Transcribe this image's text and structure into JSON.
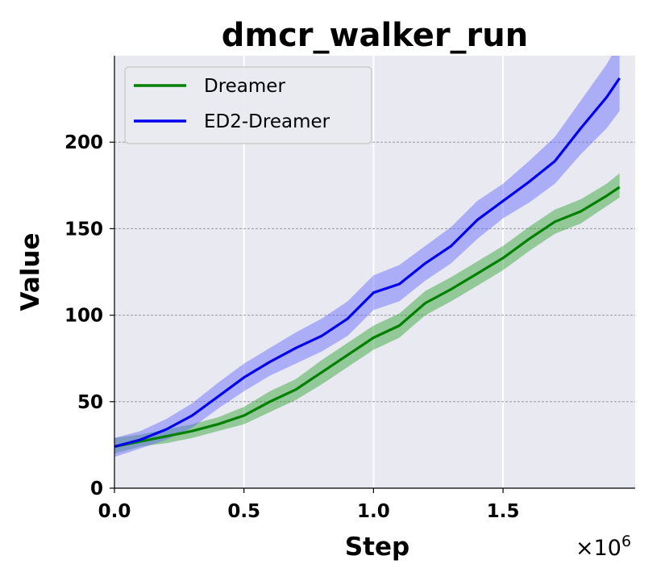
{
  "chart_data": {
    "type": "line",
    "title": "dmcr_walker_run",
    "xlabel": "Step",
    "ylabel": "Value",
    "x_multiplier_base": "×10",
    "x_multiplier_exp": "6",
    "xlim": [
      0,
      2010000
    ],
    "ylim": [
      0,
      250
    ],
    "x_ticks": [
      0,
      500000,
      1000000,
      1500000
    ],
    "x_tick_labels": [
      "0.0",
      "0.5",
      "1.0",
      "1.5"
    ],
    "y_ticks": [
      0,
      50,
      100,
      150,
      200
    ],
    "y_tick_labels": [
      "0",
      "50",
      "100",
      "150",
      "200"
    ],
    "x_grid": "vertical white lines",
    "y_grid": "horizontal dashed gray lines",
    "background": "#e8e9f1",
    "legend_position": "top-left",
    "series": [
      {
        "name": "Dreamer",
        "color": "#008000",
        "band_color": "#2ca02c",
        "x": [
          0,
          100000,
          200000,
          300000,
          400000,
          500000,
          600000,
          700000,
          800000,
          900000,
          1000000,
          1100000,
          1200000,
          1300000,
          1400000,
          1500000,
          1600000,
          1700000,
          1800000,
          1900000,
          1950000
        ],
        "y": [
          24,
          27,
          30,
          33,
          37,
          42,
          50,
          57,
          67,
          77,
          87,
          94,
          107,
          115,
          124,
          133,
          144,
          154,
          160,
          169,
          174
        ],
        "lower": [
          20,
          24,
          26,
          29,
          33,
          37,
          44,
          51,
          60,
          70,
          80,
          87,
          100,
          108,
          117,
          126,
          137,
          147,
          153,
          163,
          168
        ],
        "upper": [
          29,
          31,
          34,
          37,
          41,
          47,
          56,
          63,
          74,
          84,
          94,
          101,
          114,
          122,
          131,
          140,
          151,
          161,
          167,
          176,
          182
        ]
      },
      {
        "name": "ED2-Dreamer",
        "color": "#0000ee",
        "band_color": "#6464ff",
        "x": [
          0,
          100000,
          200000,
          300000,
          400000,
          500000,
          600000,
          700000,
          800000,
          900000,
          1000000,
          1100000,
          1200000,
          1300000,
          1400000,
          1500000,
          1600000,
          1700000,
          1800000,
          1900000,
          1950000
        ],
        "y": [
          24,
          28,
          34,
          42,
          53,
          64,
          73,
          81,
          88,
          98,
          113,
          118,
          130,
          140,
          155,
          166,
          177,
          189,
          208,
          226,
          237
        ],
        "lower": [
          18,
          23,
          28,
          35,
          46,
          56,
          65,
          72,
          79,
          88,
          103,
          108,
          120,
          130,
          144,
          156,
          165,
          176,
          193,
          208,
          218
        ],
        "upper": [
          29,
          33,
          40,
          49,
          61,
          72,
          81,
          90,
          98,
          108,
          123,
          129,
          140,
          151,
          166,
          176,
          189,
          203,
          224,
          245,
          258
        ]
      }
    ]
  }
}
